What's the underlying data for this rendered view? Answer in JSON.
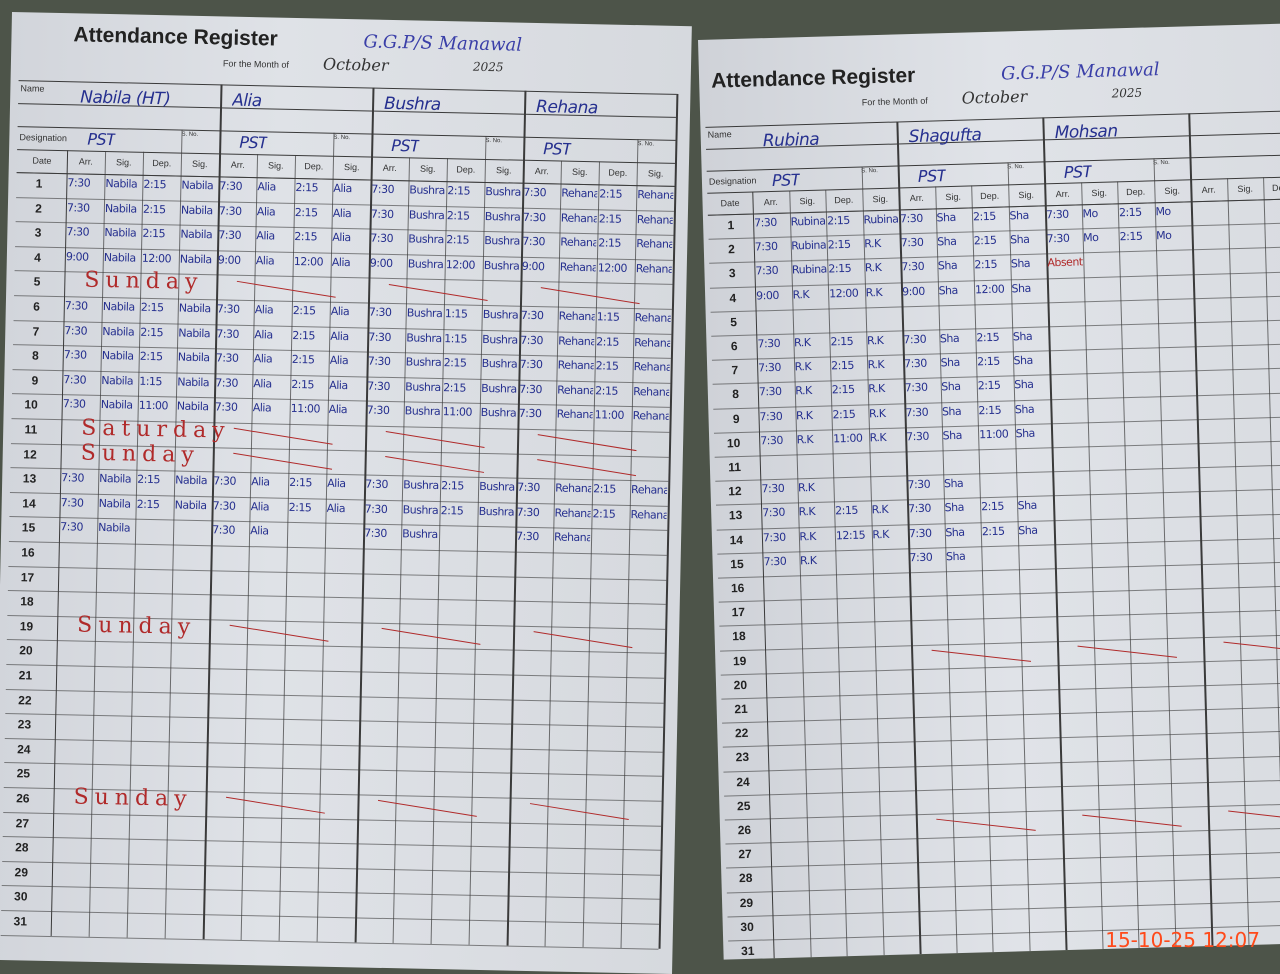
{
  "left_page": {
    "title": "Attendance Register",
    "school": "G.G.P/S Manawal",
    "month_label": "For the Month of",
    "month": "October",
    "year": "2025",
    "name_label": "Name",
    "designation_label": "Designation",
    "sno_label": "S. No.",
    "date_label": "Date",
    "col_labels": [
      "Arr.",
      "Sig.",
      "Dep.",
      "Sig."
    ],
    "staff": [
      {
        "name": "Nabila (HT)",
        "designation": "PST",
        "entries": {
          "1": [
            "7:30",
            "Nabila",
            "2:15",
            "Nabila"
          ],
          "2": [
            "7:30",
            "Nabila",
            "2:15",
            "Nabila"
          ],
          "3": [
            "7:30",
            "Nabila",
            "2:15",
            "Nabila"
          ],
          "4": [
            "9:00",
            "Nabila",
            "12:00",
            "Nabila"
          ],
          "6": [
            "7:30",
            "Nabila",
            "2:15",
            "Nabila"
          ],
          "7": [
            "7:30",
            "Nabila",
            "2:15",
            "Nabila"
          ],
          "8": [
            "7:30",
            "Nabila",
            "2:15",
            "Nabila"
          ],
          "9": [
            "7:30",
            "Nabila",
            "1:15",
            "Nabila"
          ],
          "10": [
            "7:30",
            "Nabila",
            "11:00",
            "Nabila"
          ],
          "13": [
            "7:30",
            "Nabila",
            "2:15",
            "Nabila"
          ],
          "14": [
            "7:30",
            "Nabila",
            "2:15",
            "Nabila"
          ],
          "15": [
            "7:30",
            "Nabila",
            "",
            ""
          ]
        }
      },
      {
        "name": "Alia",
        "designation": "PST",
        "entries": {
          "1": [
            "7:30",
            "Alia",
            "2:15",
            "Alia"
          ],
          "2": [
            "7:30",
            "Alia",
            "2:15",
            "Alia"
          ],
          "3": [
            "7:30",
            "Alia",
            "2:15",
            "Alia"
          ],
          "4": [
            "9:00",
            "Alia",
            "12:00",
            "Alia"
          ],
          "6": [
            "7:30",
            "Alia",
            "2:15",
            "Alia"
          ],
          "7": [
            "7:30",
            "Alia",
            "2:15",
            "Alia"
          ],
          "8": [
            "7:30",
            "Alia",
            "2:15",
            "Alia"
          ],
          "9": [
            "7:30",
            "Alia",
            "2:15",
            "Alia"
          ],
          "10": [
            "7:30",
            "Alia",
            "11:00",
            "Alia"
          ],
          "13": [
            "7:30",
            "Alia",
            "2:15",
            "Alia"
          ],
          "14": [
            "7:30",
            "Alia",
            "2:15",
            "Alia"
          ],
          "15": [
            "7:30",
            "Alia",
            "",
            ""
          ]
        }
      },
      {
        "name": "Bushra",
        "designation": "PST",
        "entries": {
          "1": [
            "7:30",
            "Bushra",
            "2:15",
            "Bushra"
          ],
          "2": [
            "7:30",
            "Bushra",
            "2:15",
            "Bushra"
          ],
          "3": [
            "7:30",
            "Bushra",
            "2:15",
            "Bushra"
          ],
          "4": [
            "9:00",
            "Bushra",
            "12:00",
            "Bushra"
          ],
          "6": [
            "7:30",
            "Bushra",
            "1:15",
            "Bushra"
          ],
          "7": [
            "7:30",
            "Bushra",
            "1:15",
            "Bushra"
          ],
          "8": [
            "7:30",
            "Bushra",
            "2:15",
            "Bushra"
          ],
          "9": [
            "7:30",
            "Bushra",
            "2:15",
            "Bushra"
          ],
          "10": [
            "7:30",
            "Bushra",
            "11:00",
            "Bushra"
          ],
          "13": [
            "7:30",
            "Bushra",
            "2:15",
            "Bushra"
          ],
          "14": [
            "7:30",
            "Bushra",
            "2:15",
            "Bushra"
          ],
          "15": [
            "7:30",
            "Bushra",
            "",
            ""
          ]
        }
      },
      {
        "name": "Rehana",
        "designation": "PST",
        "entries": {
          "1": [
            "7:30",
            "Rehana",
            "2:15",
            "Rehana"
          ],
          "2": [
            "7:30",
            "Rehana",
            "2:15",
            "Rehana"
          ],
          "3": [
            "7:30",
            "Rehana",
            "2:15",
            "Rehana"
          ],
          "4": [
            "9:00",
            "Rehana",
            "12:00",
            "Rehana"
          ],
          "6": [
            "7:30",
            "Rehana",
            "1:15",
            "Rehana"
          ],
          "7": [
            "7:30",
            "Rehana",
            "2:15",
            "Rehana"
          ],
          "8": [
            "7:30",
            "Rehana",
            "2:15",
            "Rehana"
          ],
          "9": [
            "7:30",
            "Rehana",
            "2:15",
            "Rehana"
          ],
          "10": [
            "7:30",
            "Rehana",
            "11:00",
            "Rehana"
          ],
          "13": [
            "7:30",
            "Rehana",
            "2:15",
            "Rehana"
          ],
          "14": [
            "7:30",
            "Rehana",
            "2:15",
            "Rehana"
          ],
          "15": [
            "7:30",
            "Rehana",
            "",
            ""
          ]
        }
      }
    ],
    "notes": [
      {
        "day": 5,
        "text": "Sunday"
      },
      {
        "day": 11,
        "text": "Saturday"
      },
      {
        "day": 12,
        "text": "Sunday"
      },
      {
        "day": 19,
        "text": "Sunday"
      },
      {
        "day": 26,
        "text": "Sunday"
      }
    ]
  },
  "right_page": {
    "title": "Attendance Register",
    "school": "G.G.P/S Manawal",
    "month_label": "For the Month of",
    "month": "October",
    "year": "2025",
    "name_label": "Name",
    "designation_label": "Designation",
    "sno_label": "S. No.",
    "date_label": "Date",
    "col_labels": [
      "Arr.",
      "Sig.",
      "Dep.",
      "Sig."
    ],
    "staff": [
      {
        "name": "Rubina",
        "designation": "PST",
        "entries": {
          "1": [
            "7:30",
            "Rubina",
            "2:15",
            "Rubina"
          ],
          "2": [
            "7:30",
            "Rubina",
            "2:15",
            "R.K"
          ],
          "3": [
            "7:30",
            "Rubina",
            "2:15",
            "R.K"
          ],
          "4": [
            "9:00",
            "R.K",
            "12:00",
            "R.K"
          ],
          "6": [
            "7:30",
            "R.K",
            "2:15",
            "R.K"
          ],
          "7": [
            "7:30",
            "R.K",
            "2:15",
            "R.K"
          ],
          "8": [
            "7:30",
            "R.K",
            "2:15",
            "R.K"
          ],
          "9": [
            "7:30",
            "R.K",
            "2:15",
            "R.K"
          ],
          "10": [
            "7:30",
            "R.K",
            "11:00",
            "R.K"
          ],
          "12": [
            "7:30",
            "R.K",
            "",
            ""
          ],
          "13": [
            "7:30",
            "R.K",
            "2:15",
            "R.K"
          ],
          "14": [
            "7:30",
            "R.K",
            "12:15",
            "R.K"
          ],
          "15": [
            "7:30",
            "R.K",
            "",
            ""
          ]
        }
      },
      {
        "name": "Shagufta",
        "designation": "PST",
        "entries": {
          "1": [
            "7:30",
            "Sha",
            "2:15",
            "Sha"
          ],
          "2": [
            "7:30",
            "Sha",
            "2:15",
            "Sha"
          ],
          "3": [
            "7:30",
            "Sha",
            "2:15",
            "Sha"
          ],
          "4": [
            "9:00",
            "Sha",
            "12:00",
            "Sha"
          ],
          "6": [
            "7:30",
            "Sha",
            "2:15",
            "Sha"
          ],
          "7": [
            "7:30",
            "Sha",
            "2:15",
            "Sha"
          ],
          "8": [
            "7:30",
            "Sha",
            "2:15",
            "Sha"
          ],
          "9": [
            "7:30",
            "Sha",
            "2:15",
            "Sha"
          ],
          "10": [
            "7:30",
            "Sha",
            "11:00",
            "Sha"
          ],
          "12": [
            "7:30",
            "Sha",
            "",
            ""
          ],
          "13": [
            "7:30",
            "Sha",
            "2:15",
            "Sha"
          ],
          "14": [
            "7:30",
            "Sha",
            "2:15",
            "Sha"
          ],
          "15": [
            "7:30",
            "Sha",
            "",
            ""
          ]
        }
      },
      {
        "name": "Mohsan",
        "designation": "PST",
        "entries": {
          "1": [
            "7:30",
            "Mo",
            "2:15",
            "Mo"
          ],
          "2": [
            "7:30",
            "Mo",
            "2:15",
            "Mo"
          ],
          "3": [
            "Absent",
            "",
            "",
            ""
          ]
        }
      },
      {
        "name": "",
        "designation": "",
        "entries": {}
      }
    ],
    "notes": [
      {
        "day": 19,
        "text": ""
      },
      {
        "day": 26,
        "text": ""
      }
    ]
  },
  "timestamp": "15-10-25 12:07",
  "colors": {
    "ink_blue": "#26308f",
    "ink_red": "#b02a2a",
    "timestamp": "#ff4a1a",
    "paper": "#dcdfe4"
  }
}
